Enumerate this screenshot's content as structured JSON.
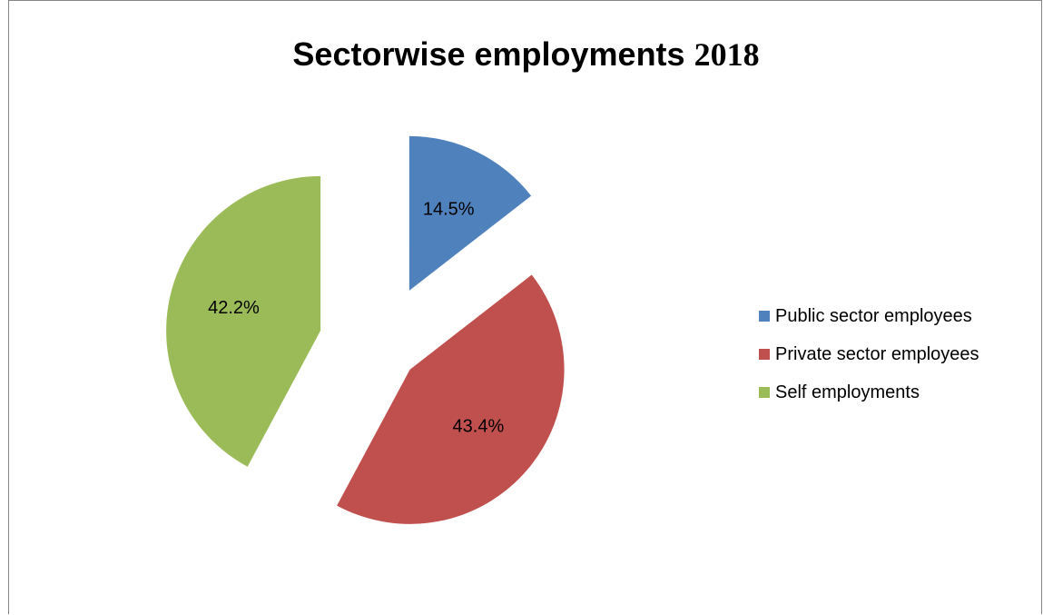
{
  "chart_data": {
    "type": "pie",
    "title": "Sectorwise employments",
    "title_year": "2018",
    "slices": [
      {
        "name": "Public sector employees",
        "value": 14.5,
        "label": "14.5%",
        "color": "#4f81bd"
      },
      {
        "name": "Private sector employees",
        "value": 43.4,
        "label": "43.4%",
        "color": "#c0504d"
      },
      {
        "name": "Self employments",
        "value": 42.2,
        "label": "42.2%",
        "color": "#9bbb59"
      }
    ],
    "exploded": true,
    "legend_position": "right"
  }
}
